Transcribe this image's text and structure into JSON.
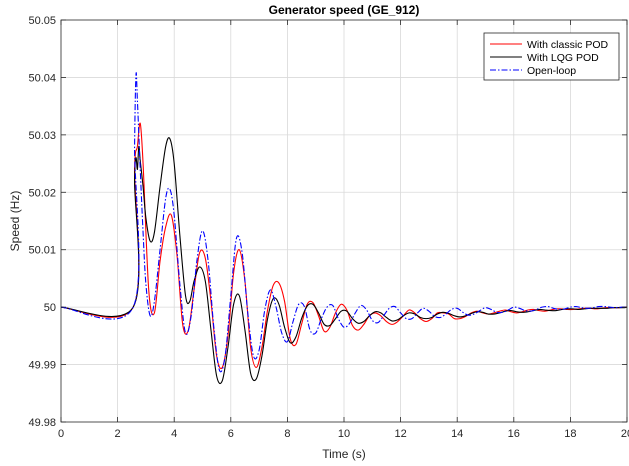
{
  "chart_data": {
    "type": "line",
    "title": "Generator speed (GE_912)",
    "xlabel": "Time (s)",
    "ylabel": "Speed (Hz)",
    "xlim": [
      0,
      20
    ],
    "ylim": [
      49.98,
      50.05
    ],
    "xticks": [
      0,
      2,
      4,
      6,
      8,
      10,
      12,
      14,
      16,
      18,
      20
    ],
    "xtick_labels": [
      "0",
      "2",
      "4",
      "6",
      "8",
      "10",
      "12",
      "14",
      "16",
      "18",
      "20"
    ],
    "yticks": [
      49.98,
      49.99,
      50,
      50.01,
      50.02,
      50.03,
      50.04,
      50.05
    ],
    "ytick_labels": [
      "49.98",
      "49.99",
      "50",
      "50.01",
      "50.02",
      "50.03",
      "50.04",
      "50.05"
    ],
    "grid": true,
    "legend_position": "top-right",
    "series": [
      {
        "name": "With classic POD",
        "color": "#ff0000",
        "dash": "solid",
        "x": [
          0,
          2.55,
          2.6,
          2.7,
          2.8,
          2.9,
          3.1,
          3.3,
          3.5,
          3.7,
          3.9,
          4.1,
          4.3,
          4.5,
          4.7,
          4.9,
          5.1,
          5.3,
          5.5,
          5.7,
          5.9,
          6.1,
          6.3,
          6.5,
          6.7,
          6.9,
          7.1,
          7.3,
          7.5,
          7.7,
          7.9,
          8.1,
          8.3,
          8.5,
          8.7,
          8.9,
          9.1,
          9.3,
          9.5,
          9.7,
          9.9,
          10.1,
          10.3,
          10.5,
          10.7,
          10.9,
          11.1,
          11.3,
          11.5,
          11.7,
          11.9,
          12.1,
          12.3,
          12.5,
          12.7,
          12.9,
          13.1,
          13.3,
          13.5,
          13.7,
          13.9,
          14.1,
          14.3,
          14.5,
          14.7,
          14.9,
          15.1,
          15.3,
          15.5,
          15.7,
          15.9,
          16.1,
          16.3,
          16.5,
          16.7,
          16.9,
          17.1,
          17.3,
          17.5,
          17.7,
          17.9,
          18.1,
          18.3,
          18.5,
          18.7,
          18.9,
          19.1,
          19.3,
          19.5,
          19.7,
          19.9,
          20
        ],
        "y": [
          50,
          50,
          50.024,
          50.028,
          50.032,
          50.025,
          50.003,
          49.999,
          50.008,
          50.014,
          50.016,
          50.009,
          49.997,
          49.996,
          50.003,
          50.0095,
          50.0085,
          50.001,
          49.9915,
          49.9895,
          49.995,
          50.006,
          50.01,
          50.0045,
          49.993,
          49.9895,
          49.993,
          49.9995,
          50.0038,
          50.0042,
          50.001,
          49.9945,
          49.9935,
          49.997,
          50.0005,
          50.0008,
          49.9985,
          49.9958,
          49.9965,
          49.999,
          50.0005,
          49.9995,
          49.9968,
          49.996,
          49.997,
          49.9985,
          49.999,
          49.9985,
          49.9975,
          49.997,
          49.9975,
          49.9985,
          49.9995,
          49.999,
          49.998,
          49.9975,
          49.998,
          49.999,
          49.999,
          49.9988,
          49.998,
          49.998,
          49.9984,
          49.999,
          49.9993,
          49.999,
          49.9988,
          49.999,
          49.9993,
          49.9995,
          49.9992,
          49.999,
          49.9992,
          49.9995,
          49.9996,
          49.9994,
          49.9993,
          49.9995,
          49.9997,
          49.9997,
          49.9996,
          49.9996,
          49.9997,
          49.9998,
          49.9998,
          49.9997,
          49.9998,
          49.9999,
          49.9999,
          49.9999,
          50,
          50
        ]
      },
      {
        "name": "With LQG POD",
        "color": "#000000",
        "dash": "solid",
        "x": [
          0,
          2.55,
          2.6,
          2.65,
          2.7,
          2.75,
          2.8,
          2.9,
          3.0,
          3.15,
          3.3,
          3.5,
          3.7,
          3.85,
          4.0,
          4.2,
          4.4,
          4.55,
          4.7,
          4.9,
          5.1,
          5.3,
          5.5,
          5.7,
          5.9,
          6.1,
          6.3,
          6.5,
          6.7,
          6.9,
          7.1,
          7.3,
          7.5,
          7.7,
          7.9,
          8.1,
          8.3,
          8.5,
          8.7,
          8.9,
          9.1,
          9.3,
          9.5,
          9.7,
          9.9,
          10.1,
          10.3,
          10.5,
          10.7,
          10.9,
          11.1,
          11.3,
          11.5,
          11.7,
          11.9,
          12.1,
          12.3,
          12.5,
          12.7,
          12.9,
          13.1,
          13.3,
          13.5,
          13.7,
          13.9,
          14.1,
          14.3,
          14.5,
          14.7,
          14.9,
          15.1,
          15.3,
          15.5,
          15.7,
          15.9,
          16.1,
          16.3,
          16.5,
          16.7,
          16.9,
          17.1,
          17.3,
          17.5,
          17.7,
          17.9,
          18.1,
          18.3,
          18.5,
          18.7,
          18.9,
          19.1,
          19.3,
          19.5,
          19.7,
          19.9,
          20
        ],
        "y": [
          50,
          50,
          50.022,
          50.026,
          50.024,
          50.028,
          50.0255,
          50.021,
          50.0155,
          50.0115,
          50.013,
          50.021,
          50.028,
          50.0293,
          50.025,
          50.0125,
          50.002,
          50.001,
          50.0045,
          50.007,
          50.0045,
          49.996,
          49.988,
          49.9872,
          49.993,
          50.0005,
          50.002,
          49.996,
          49.9885,
          49.9875,
          49.9915,
          49.998,
          50.0015,
          50.0005,
          49.9965,
          49.9938,
          49.9948,
          49.998,
          50.0002,
          50.0005,
          49.999,
          49.997,
          49.9968,
          49.998,
          49.9993,
          49.9993,
          49.998,
          49.9972,
          49.9975,
          49.9985,
          49.9992,
          49.999,
          49.9982,
          49.9976,
          49.9978,
          49.9985,
          49.999,
          49.9988,
          49.9982,
          49.998,
          49.9982,
          49.9988,
          49.9991,
          49.9989,
          49.9985,
          49.9983,
          49.9985,
          49.9989,
          49.9992,
          49.9991,
          49.9988,
          49.9988,
          49.999,
          49.9993,
          49.9994,
          49.9992,
          49.9991,
          49.9992,
          49.9994,
          49.9996,
          49.9995,
          49.9994,
          49.9994,
          49.9996,
          49.9997,
          49.9997,
          49.9996,
          49.9997,
          49.9998,
          49.9998,
          49.9998,
          49.9998,
          49.9999,
          49.9999,
          49.9999,
          50
        ]
      },
      {
        "name": "Open-loop",
        "color": "#0000ff",
        "dash": "dashdot",
        "x": [
          0,
          2.55,
          2.6,
          2.65,
          2.7,
          2.8,
          2.9,
          3.0,
          3.15,
          3.3,
          3.5,
          3.7,
          3.85,
          4.0,
          4.2,
          4.4,
          4.6,
          4.8,
          5.0,
          5.2,
          5.4,
          5.6,
          5.8,
          6.0,
          6.2,
          6.4,
          6.6,
          6.8,
          7.0,
          7.2,
          7.4,
          7.6,
          7.8,
          8.0,
          8.2,
          8.4,
          8.6,
          8.8,
          9.0,
          9.2,
          9.4,
          9.6,
          9.8,
          10.0,
          10.2,
          10.4,
          10.6,
          10.8,
          11.0,
          11.2,
          11.4,
          11.6,
          11.8,
          12.0,
          12.2,
          12.4,
          12.6,
          12.8,
          13.0,
          13.2,
          13.4,
          13.6,
          13.8,
          14.0,
          14.2,
          14.4,
          14.6,
          14.8,
          15.0,
          15.2,
          15.4,
          15.6,
          15.8,
          16.0,
          16.2,
          16.4,
          16.6,
          16.8,
          17.0,
          17.2,
          17.4,
          17.6,
          17.8,
          18.0,
          18.2,
          18.4,
          18.6,
          18.8,
          19.0,
          19.2,
          19.4,
          19.6,
          19.8,
          20
        ],
        "y": [
          50,
          50,
          50.028,
          50.0405,
          50.036,
          50.024,
          50.013,
          50.004,
          49.9985,
          50.001,
          50.01,
          50.019,
          50.0205,
          50.016,
          50.004,
          49.9955,
          49.9985,
          50.008,
          50.0133,
          50.008,
          49.9965,
          49.989,
          49.9915,
          50.002,
          50.012,
          50.0095,
          49.999,
          49.9915,
          49.9925,
          49.9995,
          50.003,
          50.0,
          49.9955,
          49.994,
          49.9975,
          50.0005,
          50.0001,
          49.996,
          49.9955,
          49.998,
          50.0,
          50.0003,
          49.998,
          49.9965,
          49.9972,
          49.999,
          50.0003,
          49.9995,
          49.9977,
          49.9973,
          49.9985,
          49.9998,
          50.0001,
          49.999,
          49.998,
          49.998,
          49.999,
          49.9998,
          49.9993,
          49.9984,
          49.9982,
          49.9988,
          49.9996,
          49.9998,
          49.9991,
          49.9986,
          49.9988,
          49.9994,
          49.9999,
          49.9996,
          49.9991,
          49.9991,
          49.9995,
          50.0,
          49.9998,
          49.9994,
          49.9993,
          49.9996,
          50.0,
          50.0001,
          49.9998,
          49.9996,
          49.9997,
          50.0,
          50.0001,
          49.9999,
          49.9998,
          49.9999,
          50.0001,
          50.0001,
          50.0,
          49.9999,
          50.0,
          50.0
        ]
      }
    ]
  }
}
